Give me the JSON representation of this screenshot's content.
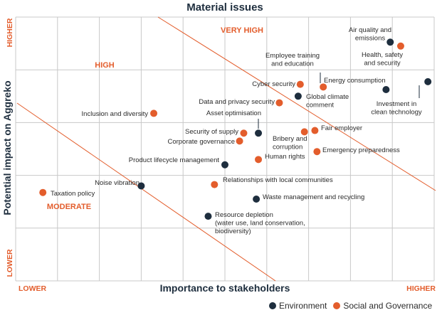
{
  "chart_data": {
    "type": "scatter",
    "title": "Material issues",
    "xlabel": "Importance to stakeholders",
    "ylabel": "Potential impact on Aggreko",
    "xlim": [
      0,
      100
    ],
    "ylim": [
      0,
      100
    ],
    "x_low_label": "LOWER",
    "x_high_label": "HIGHER",
    "y_low_label": "LOWER",
    "y_high_label": "HIGHER",
    "grid": true,
    "zones": [
      {
        "label": "VERY HIGH"
      },
      {
        "label": "HIGH"
      },
      {
        "label": "MODERATE"
      }
    ],
    "colors": {
      "Environment": "#1e2e3e",
      "Social and Governance": "#e35d2c",
      "axis_text": "#e35d2c",
      "title": "#1e2e3e",
      "grid": "#c8c8c8"
    },
    "legend": {
      "position": "bottom-right",
      "entries": [
        "Environment",
        "Social and Governance"
      ]
    },
    "series": [
      {
        "name": "Environment",
        "points": [
          {
            "x": 89.5,
            "y": 90.5,
            "label": "Air quality and emissions"
          },
          {
            "x": 98.5,
            "y": 75.5,
            "label": "Investment in clean technology"
          },
          {
            "x": 88.5,
            "y": 72.5,
            "label": "Energy consumption"
          },
          {
            "x": 67.5,
            "y": 70,
            "label": "Global climate comment"
          },
          {
            "x": 58,
            "y": 56,
            "label": "Asset optimisation"
          },
          {
            "x": 50,
            "y": 44,
            "label": "Product lifecycle management"
          },
          {
            "x": 30,
            "y": 36,
            "label": "Noise vibration"
          },
          {
            "x": 57.5,
            "y": 31,
            "label": "Waste management and recycling"
          },
          {
            "x": 46,
            "y": 24.5,
            "label": "Resource depletion (water use, land conservation, biodiversity)"
          }
        ]
      },
      {
        "name": "Social and Governance",
        "points": [
          {
            "x": 92,
            "y": 89,
            "label": "Health, safety and security"
          },
          {
            "x": 73.5,
            "y": 73.5,
            "label": "Employee training and education"
          },
          {
            "x": 68,
            "y": 74.5,
            "label": "Cyber security"
          },
          {
            "x": 63,
            "y": 67.5,
            "label": "Data and privacy security"
          },
          {
            "x": 33,
            "y": 63.5,
            "label": "Inclusion and diversity"
          },
          {
            "x": 54.5,
            "y": 56,
            "label": "Security of supply"
          },
          {
            "x": 53.5,
            "y": 53,
            "label": "Corporate governance"
          },
          {
            "x": 69,
            "y": 56.5,
            "label": "Bribery and corruption"
          },
          {
            "x": 71.5,
            "y": 57,
            "label": "Fair employer"
          },
          {
            "x": 72,
            "y": 49,
            "label": "Emergency preparedness"
          },
          {
            "x": 58,
            "y": 46,
            "label": "Human rights"
          },
          {
            "x": 47.5,
            "y": 36.5,
            "label": "Relationships with local communities"
          },
          {
            "x": 6.5,
            "y": 33.5,
            "label": "Taxation policy"
          }
        ]
      }
    ]
  }
}
